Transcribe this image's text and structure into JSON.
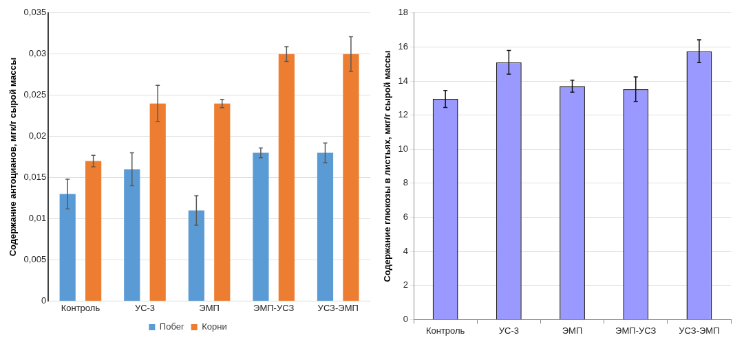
{
  "chart_data": [
    {
      "type": "bar",
      "ylabel": "Содержание антоцианов, мгк/г сырой массы",
      "categories": [
        "Контроль",
        "УС-3",
        "ЭМП",
        "ЭМП-УСЗ",
        "УСЗ-ЭМП"
      ],
      "series": [
        {
          "name": "Побег",
          "color": "#5b9bd5",
          "values": [
            0.013,
            0.016,
            0.011,
            0.018,
            0.018
          ],
          "errors": [
            0.0018,
            0.002,
            0.0018,
            0.0006,
            0.0012
          ]
        },
        {
          "name": "Корни",
          "color": "#ed7d31",
          "values": [
            0.017,
            0.024,
            0.024,
            0.03,
            0.03
          ],
          "errors": [
            0.0007,
            0.0022,
            0.0005,
            0.0009,
            0.0021
          ]
        }
      ],
      "ylim": [
        0,
        0.035
      ],
      "yticks": [
        0,
        {
          "value": 0.005,
          "label": "0,005"
        },
        {
          "value": 0.01,
          "label": "0,01"
        },
        {
          "value": 0.015,
          "label": "0,015"
        },
        {
          "value": 0.02,
          "label": "0,02"
        },
        {
          "value": 0.025,
          "label": "0,025"
        },
        {
          "value": 0.03,
          "label": "0,03"
        },
        {
          "value": 0.035,
          "label": "0,035"
        }
      ],
      "grid": "y",
      "legend": "bottom"
    },
    {
      "type": "bar",
      "ylabel": "Содержание глюкозы в листьях, мкг/г сырой массы",
      "categories": [
        "Контроль",
        "УС-3",
        "ЭМП",
        "ЭМП-УСЗ",
        "УСЗ-ЭМП"
      ],
      "values": [
        12.95,
        15.1,
        13.7,
        13.52,
        15.75
      ],
      "color": "#9999ff",
      "errors": [
        0.5,
        0.7,
        0.35,
        0.72,
        0.67
      ],
      "ylim": [
        0,
        18
      ],
      "yticks": [
        0,
        2,
        4,
        6,
        8,
        10,
        12,
        14,
        16,
        18
      ],
      "grid": "y"
    }
  ]
}
